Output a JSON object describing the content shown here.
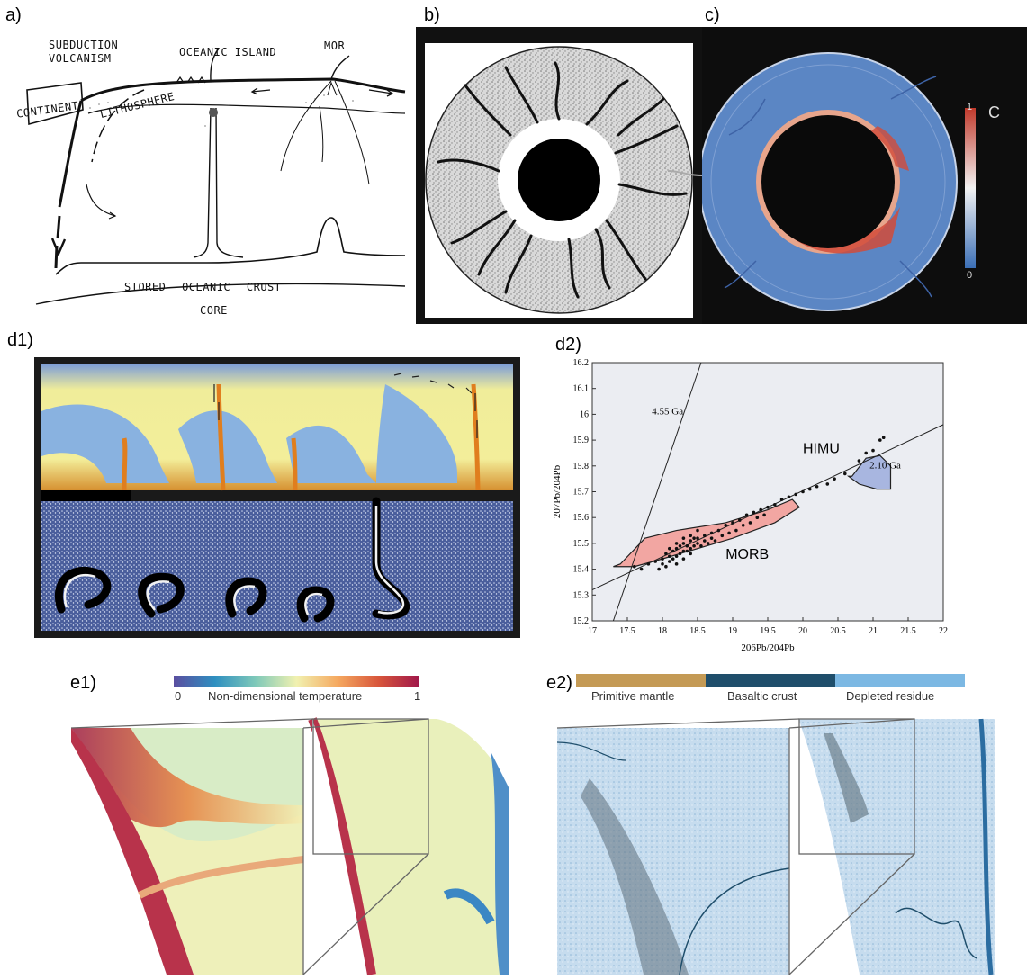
{
  "panels": {
    "a": {
      "label": "a)",
      "texts": {
        "subduction_line1": "SUBDUCTION",
        "subduction_line2": "VOLCANISM",
        "oceanic_island": "OCEANIC ISLAND",
        "mor": "MOR",
        "continent": "CONTINENT",
        "lithosphere": "LITHOSPHERE",
        "stored_crust": "STORED OCEANIC CRUST",
        "core": "CORE"
      }
    },
    "b": {
      "label": "b)"
    },
    "c": {
      "label": "c)",
      "colorbar": {
        "title": "C",
        "max_label": "1",
        "min_label": "0"
      }
    },
    "d1": {
      "label": "d1)"
    },
    "d2": {
      "label": "d2)",
      "annotations": {
        "ga_455": "4.55 Ga",
        "ga_210": "2.10 Ga",
        "himu": "HIMU",
        "morb": "MORB"
      }
    },
    "e1": {
      "label": "e1)",
      "colorbar": {
        "title": "Non-dimensional temperature",
        "min_label": "0",
        "max_label": "1"
      }
    },
    "e2": {
      "label": "e2)",
      "legend": [
        "Primitive mantle",
        "Basaltic crust",
        "Depleted residue"
      ]
    }
  },
  "colors": {
    "himu_fill": "#a8b6e0",
    "morb_fill": "#f2a6a2",
    "primitive_mantle": "#c49a55",
    "basaltic_crust": "#1f4e6b",
    "depleted_residue": "#7cb8e3",
    "plot_bg": "#ebedf2"
  },
  "chart_data": {
    "type": "scatter",
    "title": "",
    "xlabel": "206Pb/204Pb",
    "ylabel": "207Pb/204Pb",
    "xlim": [
      17,
      22
    ],
    "ylim": [
      15.2,
      16.2
    ],
    "xticks": [
      "17",
      "17.5",
      "18",
      "18.5",
      "19",
      "19.5",
      "20",
      "20.5",
      "21",
      "21.5",
      "22"
    ],
    "yticks": [
      "15.2",
      "15.3",
      "15.4",
      "15.5",
      "15.6",
      "15.7",
      "15.8",
      "15.9",
      "16",
      "16.1",
      "16.2"
    ],
    "lines": [
      {
        "name": "4.55 Ga",
        "x": [
          17.3,
          18.55
        ],
        "y": [
          15.2,
          16.2
        ]
      },
      {
        "name": "2.10 Ga",
        "x": [
          17.0,
          22.0
        ],
        "y": [
          15.32,
          15.96
        ]
      }
    ],
    "regions": [
      {
        "name": "MORB",
        "color": "#f2a6a2",
        "x": [
          17.4,
          17.75,
          18.2,
          18.9,
          19.5,
          19.85,
          19.95,
          19.6,
          19.0,
          18.5,
          18.0,
          17.6,
          17.3
        ],
        "y": [
          15.42,
          15.52,
          15.55,
          15.58,
          15.63,
          15.67,
          15.64,
          15.58,
          15.52,
          15.48,
          15.44,
          15.41,
          15.41
        ]
      },
      {
        "name": "HIMU",
        "color": "#a8b6e0",
        "x": [
          20.7,
          20.9,
          21.1,
          21.25,
          21.25,
          21.05,
          20.8,
          20.65
        ],
        "y": [
          15.76,
          15.83,
          15.84,
          15.8,
          15.71,
          15.71,
          15.73,
          15.76
        ]
      }
    ],
    "points": [
      [
        17.6,
        15.41
      ],
      [
        17.7,
        15.4
      ],
      [
        17.8,
        15.42
      ],
      [
        17.9,
        15.43
      ],
      [
        18.0,
        15.44
      ],
      [
        18.05,
        15.46
      ],
      [
        18.1,
        15.45
      ],
      [
        18.15,
        15.47
      ],
      [
        18.2,
        15.48
      ],
      [
        18.25,
        15.49
      ],
      [
        18.3,
        15.5
      ],
      [
        18.35,
        15.49
      ],
      [
        18.4,
        15.51
      ],
      [
        18.45,
        15.52
      ],
      [
        18.5,
        15.52
      ],
      [
        18.6,
        15.53
      ],
      [
        18.7,
        15.54
      ],
      [
        18.8,
        15.55
      ],
      [
        18.9,
        15.57
      ],
      [
        19.0,
        15.58
      ],
      [
        19.1,
        15.59
      ],
      [
        19.2,
        15.61
      ],
      [
        19.3,
        15.62
      ],
      [
        19.4,
        15.63
      ],
      [
        19.5,
        15.64
      ],
      [
        19.6,
        15.65
      ],
      [
        19.7,
        15.67
      ],
      [
        19.8,
        15.68
      ],
      [
        19.9,
        15.69
      ],
      [
        20.0,
        15.7
      ],
      [
        20.1,
        15.71
      ],
      [
        20.2,
        15.72
      ],
      [
        20.35,
        15.73
      ],
      [
        20.45,
        15.75
      ],
      [
        20.6,
        15.77
      ],
      [
        20.8,
        15.82
      ],
      [
        20.9,
        15.85
      ],
      [
        21.0,
        15.86
      ],
      [
        21.1,
        15.9
      ],
      [
        21.15,
        15.91
      ],
      [
        18.0,
        15.42
      ],
      [
        18.1,
        15.43
      ],
      [
        18.2,
        15.45
      ],
      [
        18.3,
        15.47
      ],
      [
        18.4,
        15.48
      ],
      [
        18.5,
        15.5
      ],
      [
        18.6,
        15.51
      ],
      [
        18.7,
        15.52
      ],
      [
        17.95,
        15.4
      ],
      [
        18.05,
        15.41
      ],
      [
        18.15,
        15.44
      ],
      [
        18.25,
        15.46
      ],
      [
        18.35,
        15.47
      ],
      [
        18.45,
        15.49
      ],
      [
        18.55,
        15.49
      ],
      [
        18.65,
        15.5
      ],
      [
        18.75,
        15.51
      ],
      [
        18.85,
        15.53
      ],
      [
        18.95,
        15.54
      ],
      [
        19.05,
        15.55
      ],
      [
        19.15,
        15.57
      ],
      [
        19.25,
        15.58
      ],
      [
        19.35,
        15.6
      ],
      [
        19.45,
        15.61
      ],
      [
        18.1,
        15.48
      ],
      [
        18.2,
        15.5
      ],
      [
        18.3,
        15.52
      ],
      [
        18.4,
        15.53
      ],
      [
        18.5,
        15.55
      ],
      [
        18.2,
        15.42
      ],
      [
        18.3,
        15.44
      ],
      [
        18.4,
        15.46
      ]
    ]
  }
}
